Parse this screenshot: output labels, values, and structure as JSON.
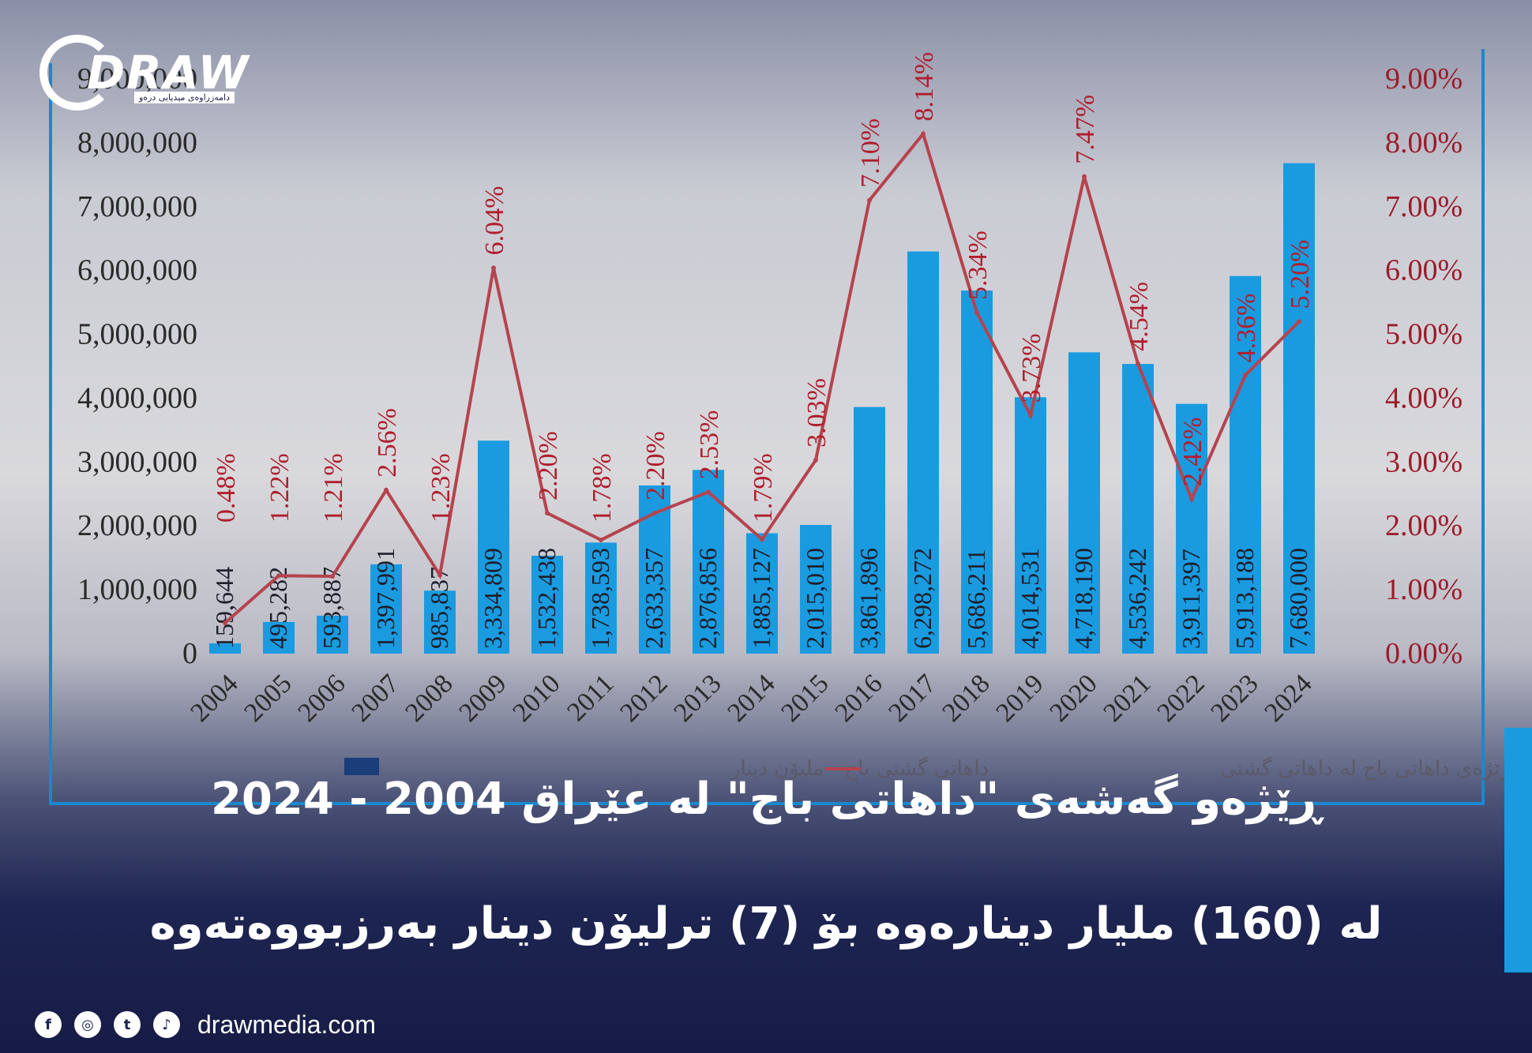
{
  "brand": {
    "logo_text": "DRAW",
    "logo_subtext": "دامەزراوەی میدیایی درەو",
    "website": "drawmedia.com"
  },
  "titles": {
    "line1": "ڕێژەو گەشەی \"داهاتی باج\" لە عێراق 2004 - 2024",
    "line2": "لە (160) ملیار دینارەوە بۆ (7) ترلیۆن دینار بەرزبووەتەوە"
  },
  "social": [
    {
      "icon": "facebook-icon",
      "glyph": "f"
    },
    {
      "icon": "instagram-icon",
      "glyph": "◎"
    },
    {
      "icon": "twitter-icon",
      "glyph": "t"
    },
    {
      "icon": "tiktok-icon",
      "glyph": "♪"
    }
  ],
  "colors": {
    "bar": "#1a9be0",
    "line": "#b5434e",
    "pct_text": "#b01e2d",
    "axis_text": "#2a2a2a",
    "right_axis_text": "#9b1c2a",
    "frame": "#1a88cf"
  },
  "chart_data": {
    "type": "bar",
    "categories": [
      "2004",
      "2005",
      "2006",
      "2007",
      "2008",
      "2009",
      "2010",
      "2011",
      "2012",
      "2013",
      "2014",
      "2015",
      "2016",
      "2017",
      "2018",
      "2019",
      "2020",
      "2021",
      "2022",
      "2023",
      "2024"
    ],
    "series": [
      {
        "name": "داهاتی گشتی باج - ملیۆن دینار",
        "type": "bar",
        "values": [
          159644,
          495282,
          593887,
          1397991,
          985837,
          3334809,
          1532438,
          1738593,
          2633357,
          2876856,
          1885127,
          2015010,
          3861896,
          6298272,
          5686211,
          4014531,
          4718190,
          4536242,
          3911397,
          5913188,
          7680000
        ],
        "labels": [
          "159,644",
          "495,282",
          "593,887",
          "1,397,991",
          "985,837",
          "3,334,809",
          "1,532,438",
          "1,738,593",
          "2,633,357",
          "2,876,856",
          "1,885,127",
          "2,015,010",
          "3,861,896",
          "6,298,272",
          "5,686,211",
          "4,014,531",
          "4,718,190",
          "4,536,242",
          "3,911,397",
          "5,913,188",
          "7,680,000"
        ]
      },
      {
        "name": "ڕێژەی داهاتی باج لە داهاتی گشتی",
        "type": "line",
        "axis": "right",
        "values": [
          0.48,
          1.22,
          1.21,
          2.56,
          1.23,
          6.04,
          2.2,
          1.78,
          2.2,
          2.53,
          1.79,
          3.03,
          7.1,
          8.14,
          5.34,
          3.73,
          7.47,
          4.54,
          2.42,
          4.36,
          5.2
        ],
        "labels": [
          "0.48%",
          "1.22%",
          "1.21%",
          "2.56%",
          "1.23%",
          "6.04%",
          "2.20%",
          "1.78%",
          "2.20%",
          "2.53%",
          "1.79%",
          "3.03%",
          "7.10%",
          "8.14%",
          "5.34%",
          "3.73%",
          "7.47%",
          "4.54%",
          "2.42%",
          "4.36%",
          "5.20%"
        ]
      }
    ],
    "y_left": {
      "ylim": [
        0,
        9000000
      ],
      "ticks": [
        "0",
        "1,000,000",
        "2,000,000",
        "3,000,000",
        "4,000,000",
        "5,000,000",
        "6,000,000",
        "7,000,000",
        "8,000,000",
        "9,000,000"
      ]
    },
    "y_right": {
      "ylim": [
        0,
        9
      ],
      "ticks": [
        "0.00%",
        "1.00%",
        "2.00%",
        "3.00%",
        "4.00%",
        "5.00%",
        "6.00%",
        "7.00%",
        "8.00%",
        "9.00%"
      ]
    },
    "legend_position": "bottom",
    "grid": false
  }
}
